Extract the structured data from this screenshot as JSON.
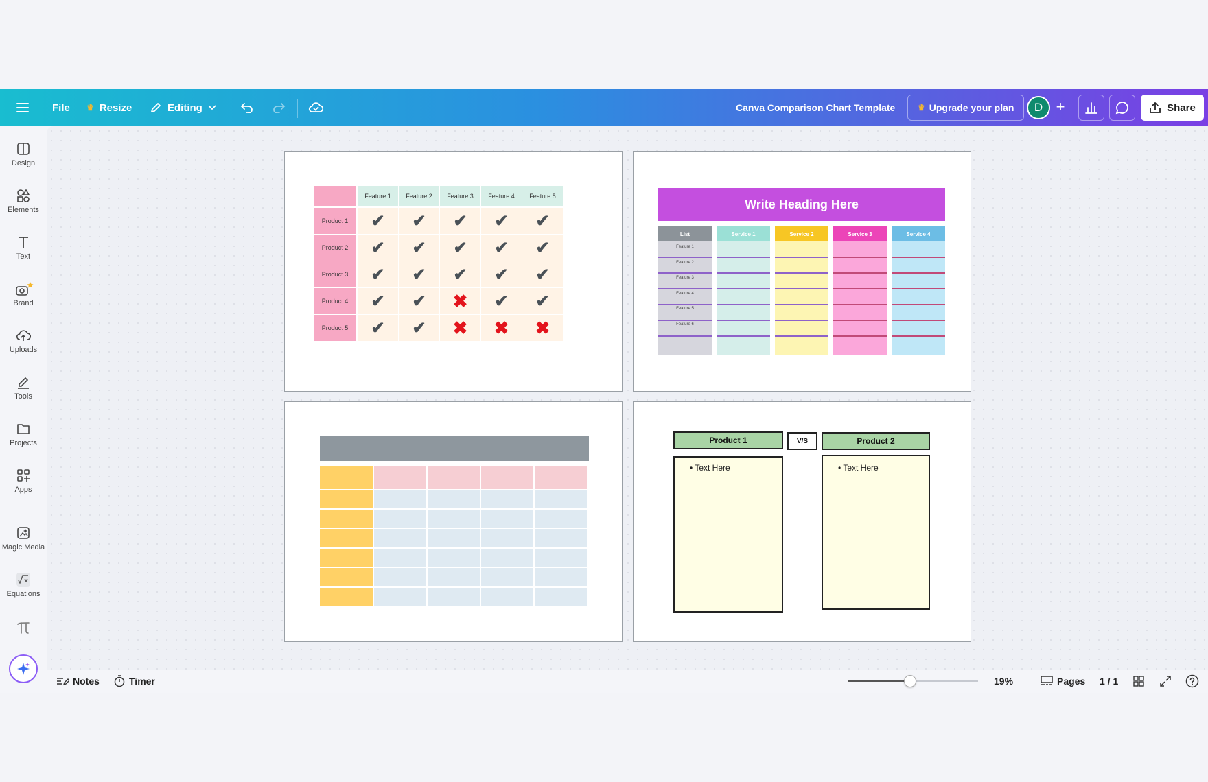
{
  "topbar": {
    "file_label": "File",
    "resize_label": "Resize",
    "editing_label": "Editing",
    "doc_title": "Canva Comparison Chart Template",
    "upgrade_label": "Upgrade your plan",
    "avatar_letter": "D",
    "share_label": "Share"
  },
  "sidebar": {
    "items": [
      {
        "label": "Design",
        "icon": "design-icon"
      },
      {
        "label": "Elements",
        "icon": "elements-icon"
      },
      {
        "label": "Text",
        "icon": "text-icon"
      },
      {
        "label": "Brand",
        "icon": "brand-icon"
      },
      {
        "label": "Uploads",
        "icon": "uploads-icon"
      },
      {
        "label": "Tools",
        "icon": "tools-icon"
      },
      {
        "label": "Projects",
        "icon": "projects-icon"
      },
      {
        "label": "Apps",
        "icon": "apps-icon"
      },
      {
        "label": "Magic Media",
        "icon": "magic-media-icon"
      },
      {
        "label": "Equations",
        "icon": "equations-icon"
      }
    ]
  },
  "bottombar": {
    "notes_label": "Notes",
    "timer_label": "Timer",
    "zoom": "19%",
    "zoom_fraction": 0.19,
    "pages_label": "Pages",
    "page_count": "1 / 1"
  },
  "chart1": {
    "features": [
      "Feature 1",
      "Feature 2",
      "Feature 3",
      "Feature 4",
      "Feature 5"
    ],
    "products": [
      "Product 1",
      "Product 2",
      "Product 3",
      "Product 4",
      "Product 5"
    ],
    "marks": [
      [
        "ok",
        "ok",
        "ok",
        "ok",
        "ok"
      ],
      [
        "ok",
        "ok",
        "ok",
        "ok",
        "ok"
      ],
      [
        "ok",
        "ok",
        "ok",
        "ok",
        "ok"
      ],
      [
        "ok",
        "ok",
        "x",
        "ok",
        "ok"
      ],
      [
        "ok",
        "ok",
        "x",
        "x",
        "x"
      ]
    ]
  },
  "chart2": {
    "heading": "Write Heading Here",
    "columns": [
      "List",
      "Service 1",
      "Service 2",
      "Service 3",
      "Service 4"
    ],
    "rows": [
      "Feature 1",
      "Feature 2",
      "Feature 3",
      "Feature 4",
      "Feature 5",
      "Feature 6"
    ]
  },
  "chart4": {
    "product1": "Product 1",
    "vs": "V/S",
    "product2": "Product 2",
    "bullet1": "Text Here",
    "bullet2": "Text Here"
  }
}
